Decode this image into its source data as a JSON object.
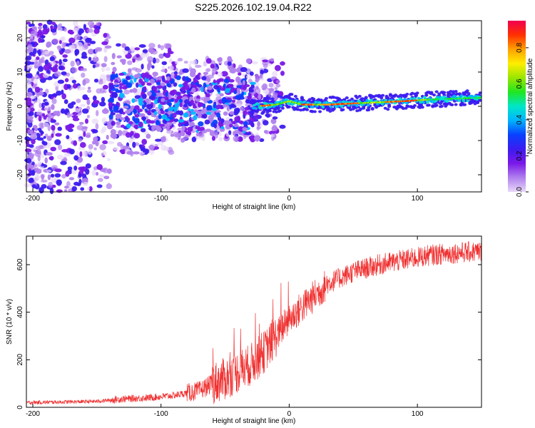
{
  "figure_title": "S225.2026.102.19.04.R22",
  "chart_data": [
    {
      "type": "heatmap",
      "title": "S225.2026.102.19.04.R22",
      "xlabel": "Height of straight line (km)",
      "ylabel": "Frequency (Hz)",
      "xlim": [
        -205,
        150
      ],
      "ylim": [
        -25,
        25
      ],
      "x_ticks": [
        -200,
        -100,
        0,
        100
      ],
      "x_tick_labels": [
        "-200",
        "-100",
        "0",
        "100"
      ],
      "y_ticks": [
        -20,
        -10,
        0,
        10,
        20
      ],
      "y_tick_labels": [
        "-20",
        "-10",
        "0",
        "10",
        "20"
      ],
      "colorbar": {
        "label": "Normalized spectral amplitude",
        "range": [
          0,
          0.95
        ],
        "ticks": [
          0.0,
          0.2,
          0.4,
          0.6,
          0.8
        ],
        "tick_labels": [
          "0.0",
          "0.2",
          "0.4",
          "0.6",
          "0.8"
        ],
        "colormap": [
          "#e8d8f8",
          "#b080ee",
          "#7a18e8",
          "#3c1cf0",
          "#0a40ff",
          "#00b4ff",
          "#00e6c8",
          "#20e620",
          "#9ae600",
          "#ffee00",
          "#ffa000",
          "#ff3000",
          "#f00050"
        ]
      },
      "ridge": {
        "x": [
          -25,
          -10,
          0,
          10,
          30,
          60,
          90,
          110,
          150
        ],
        "freq_hz": [
          0,
          0.5,
          1.5,
          0.5,
          0.5,
          1.0,
          1.5,
          2.0,
          2.5
        ]
      }
    },
    {
      "type": "line",
      "xlabel": "Height of straight line (km)",
      "ylabel": "SNR (10 * v/v)",
      "xlim": [
        -205,
        150
      ],
      "ylim": [
        0,
        720
      ],
      "x_ticks": [
        -200,
        -100,
        0,
        100
      ],
      "x_tick_labels": [
        "-200",
        "-100",
        "0",
        "100"
      ],
      "y_ticks": [
        0,
        200,
        400,
        600
      ],
      "y_tick_labels": [
        "0",
        "200",
        "400",
        "600"
      ],
      "series_color": "#f03030",
      "series": [
        {
          "name": "SNR",
          "x": [
            -205,
            -180,
            -150,
            -130,
            -110,
            -90,
            -80,
            -70,
            -60,
            -50,
            -40,
            -30,
            -20,
            -10,
            0,
            10,
            20,
            30,
            50,
            70,
            90,
            110,
            130,
            150
          ],
          "y": [
            20,
            22,
            25,
            35,
            40,
            50,
            60,
            70,
            100,
            120,
            150,
            180,
            230,
            300,
            370,
            420,
            470,
            520,
            570,
            600,
            620,
            640,
            650,
            655
          ]
        }
      ]
    }
  ]
}
